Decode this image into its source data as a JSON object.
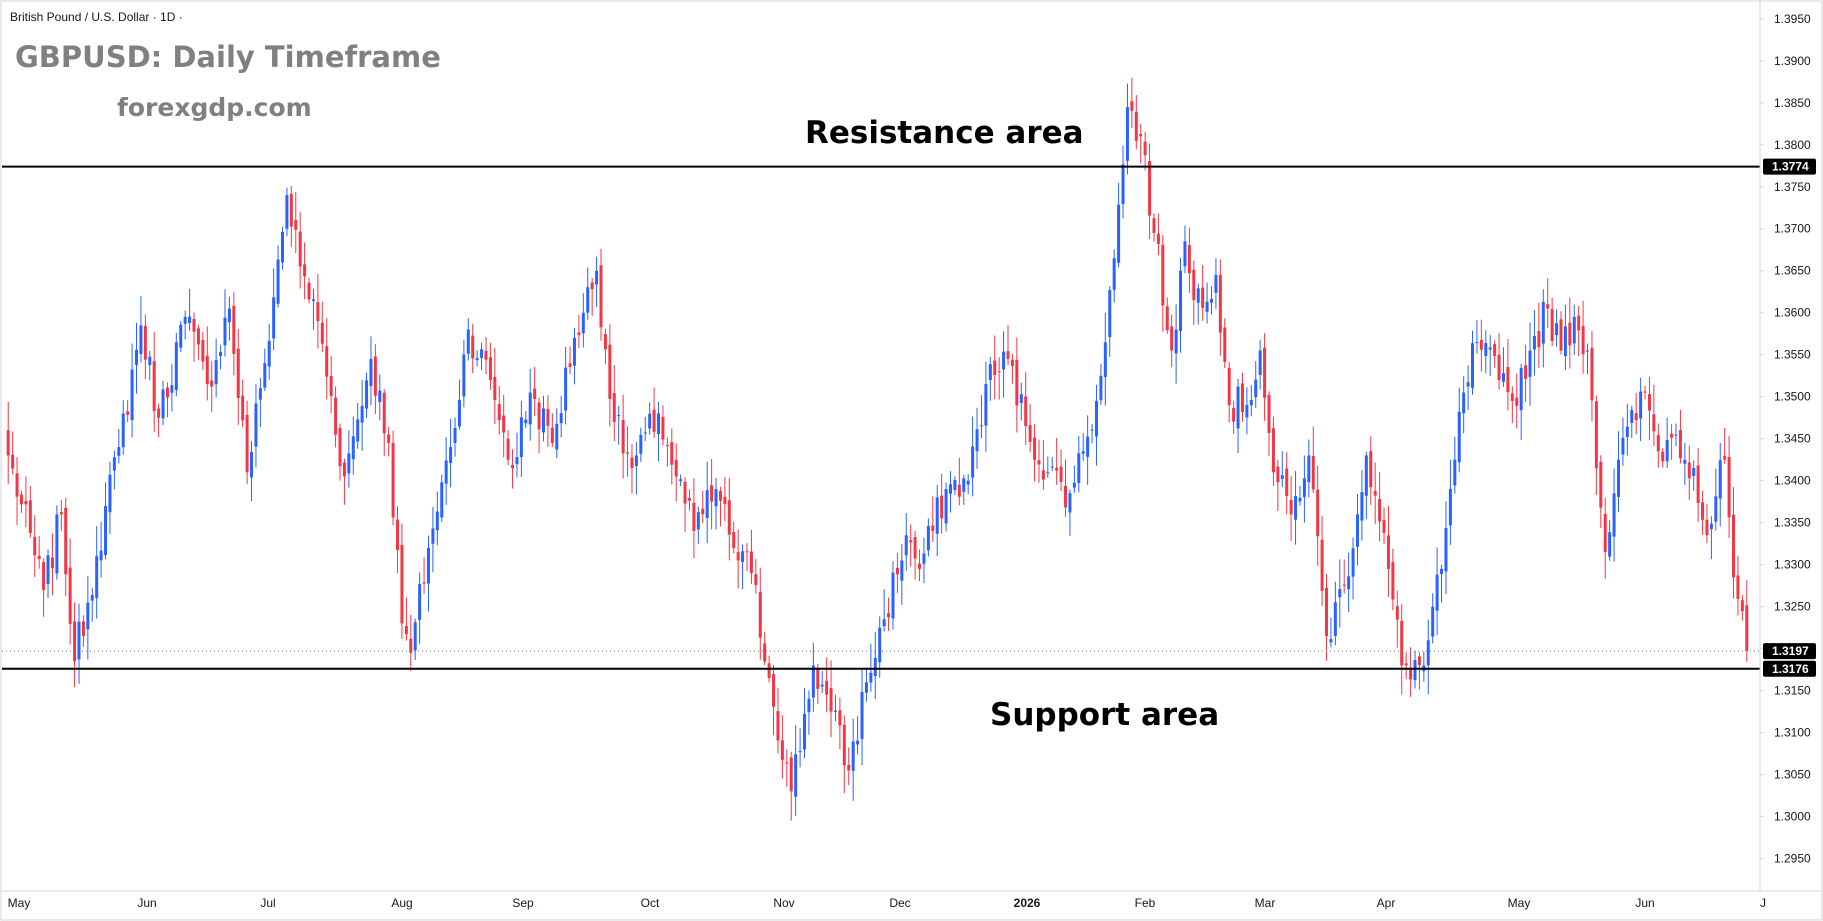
{
  "header": {
    "symbol_line": "British Pound / U.S. Dollar · 1D ·",
    "title": "GBPUSD: Daily Timeframe",
    "site": "forexgdp.com"
  },
  "annotations": {
    "resistance_label": "Resistance area",
    "support_label": "Support area"
  },
  "colors": {
    "up": "#2962ff",
    "down": "#f23645",
    "level_line": "#000000",
    "axis_text": "#131722",
    "axis_border": "#d1d4dc",
    "title_text": "#808080"
  },
  "chart_data": {
    "type": "candlestick",
    "title": "GBPUSD: Daily Timeframe",
    "y_axis": {
      "range": [
        1.2915,
        1.397
      ],
      "ticks": [
        "1.2950",
        "1.3000",
        "1.3050",
        "1.3100",
        "1.3150",
        "1.3200",
        "1.3250",
        "1.3300",
        "1.3350",
        "1.3400",
        "1.3450",
        "1.3500",
        "1.3550",
        "1.3600",
        "1.3650",
        "1.3700",
        "1.3750",
        "1.3800",
        "1.3850",
        "1.3900",
        "1.3950"
      ]
    },
    "x_axis": {
      "labels": [
        "May",
        "Jun",
        "Jul",
        "Aug",
        "Sep",
        "Oct",
        "Nov",
        "Dec",
        "2026",
        "Feb",
        "Mar",
        "Apr",
        "May",
        "Jun",
        "J"
      ]
    },
    "levels": [
      {
        "name": "resistance",
        "value": 1.3774,
        "label": "1.3774"
      },
      {
        "name": "support",
        "value": 1.3176,
        "label": "1.3176"
      }
    ],
    "last_price": {
      "value": 1.3197,
      "label": "1.3197"
    },
    "anchors": [
      [
        0,
        1.343
      ],
      [
        8,
        1.327
      ],
      [
        12,
        1.336
      ],
      [
        15,
        1.3185
      ],
      [
        20,
        1.331
      ],
      [
        25,
        1.344
      ],
      [
        30,
        1.3585
      ],
      [
        34,
        1.3475
      ],
      [
        40,
        1.3595
      ],
      [
        45,
        1.3515
      ],
      [
        50,
        1.3605
      ],
      [
        54,
        1.341
      ],
      [
        58,
        1.354
      ],
      [
        63,
        1.374
      ],
      [
        66,
        1.3655
      ],
      [
        70,
        1.359
      ],
      [
        76,
        1.3405
      ],
      [
        82,
        1.3545
      ],
      [
        86,
        1.3445
      ],
      [
        89,
        1.323
      ],
      [
        91,
        1.3195
      ],
      [
        95,
        1.332
      ],
      [
        100,
        1.344
      ],
      [
        104,
        1.358
      ],
      [
        109,
        1.352
      ],
      [
        114,
        1.3415
      ],
      [
        118,
        1.3505
      ],
      [
        123,
        1.3445
      ],
      [
        128,
        1.357
      ],
      [
        133,
        1.365
      ],
      [
        137,
        1.347
      ],
      [
        141,
        1.3415
      ],
      [
        147,
        1.348
      ],
      [
        151,
        1.3405
      ],
      [
        155,
        1.334
      ],
      [
        160,
        1.339
      ],
      [
        164,
        1.332
      ],
      [
        168,
        1.329
      ],
      [
        172,
        1.3165
      ],
      [
        177,
        1.303
      ],
      [
        182,
        1.318
      ],
      [
        186,
        1.3125
      ],
      [
        190,
        1.3055
      ],
      [
        194,
        1.316
      ],
      [
        198,
        1.3235
      ],
      [
        203,
        1.3335
      ],
      [
        206,
        1.3295
      ],
      [
        212,
        1.339
      ],
      [
        217,
        1.34
      ],
      [
        221,
        1.3515
      ],
      [
        226,
        1.3545
      ],
      [
        230,
        1.3465
      ],
      [
        235,
        1.341
      ],
      [
        240,
        1.3385
      ],
      [
        243,
        1.3435
      ],
      [
        246,
        1.3495
      ],
      [
        250,
        1.3665
      ],
      [
        253,
        1.3845
      ],
      [
        256,
        1.381
      ],
      [
        259,
        1.3695
      ],
      [
        263,
        1.3555
      ],
      [
        266,
        1.3685
      ],
      [
        268,
        1.3615
      ],
      [
        273,
        1.3645
      ],
      [
        276,
        1.349
      ],
      [
        280,
        1.349
      ],
      [
        283,
        1.3555
      ],
      [
        286,
        1.341
      ],
      [
        290,
        1.336
      ],
      [
        294,
        1.343
      ],
      [
        298,
        1.3215
      ],
      [
        302,
        1.3275
      ],
      [
        307,
        1.343
      ],
      [
        312,
        1.3295
      ],
      [
        315,
        1.318
      ],
      [
        320,
        1.318
      ],
      [
        324,
        1.3295
      ],
      [
        327,
        1.3425
      ],
      [
        329,
        1.3505
      ],
      [
        332,
        1.3565
      ],
      [
        337,
        1.352
      ],
      [
        340,
        1.3495
      ],
      [
        344,
        1.3555
      ],
      [
        348,
        1.3605
      ],
      [
        351,
        1.3555
      ],
      [
        354,
        1.3595
      ],
      [
        357,
        1.3555
      ],
      [
        361,
        1.3315
      ],
      [
        364,
        1.3425
      ],
      [
        370,
        1.3505
      ],
      [
        373,
        1.3435
      ],
      [
        377,
        1.3455
      ],
      [
        381,
        1.3415
      ],
      [
        384,
        1.3335
      ],
      [
        388,
        1.3425
      ],
      [
        390,
        1.3285
      ],
      [
        393,
        1.3197
      ]
    ]
  }
}
